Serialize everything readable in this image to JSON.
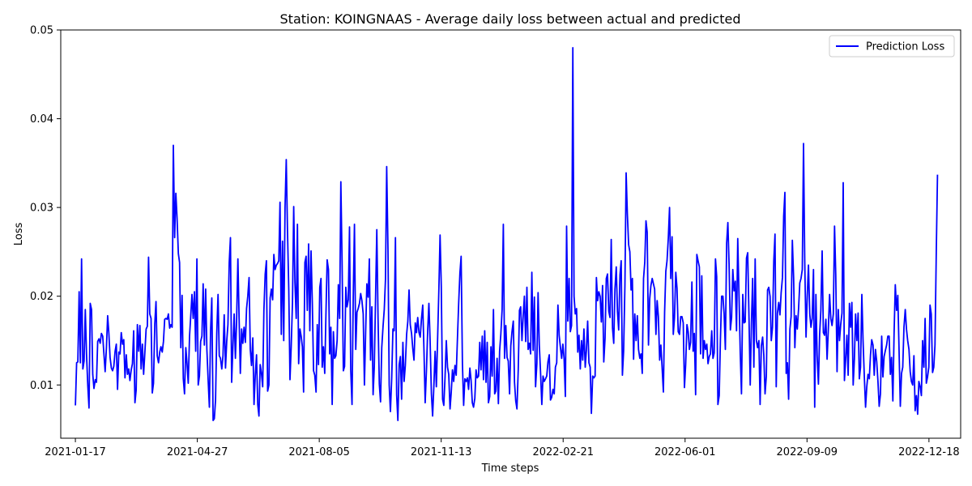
{
  "chart_data": {
    "type": "line",
    "title": "Station: KOINGNAAS - Average daily loss between actual and predicted",
    "xlabel": "Time steps",
    "ylabel": "Loss",
    "x_start": "2021-01-17",
    "x_end": "2022-12-25",
    "ylim": [
      0.004,
      0.05
    ],
    "xlim": [
      "2021-01-05",
      "2023-01-13"
    ],
    "x_ticks": [
      "2021-01-17",
      "2021-04-27",
      "2021-08-05",
      "2021-11-13",
      "2022-02-21",
      "2022-06-01",
      "2022-09-09",
      "2022-12-18"
    ],
    "y_ticks": [
      "0.01",
      "0.02",
      "0.03",
      "0.04",
      "0.05"
    ],
    "grid": false,
    "legend_position": "top-right",
    "line_color": "#0000ff",
    "series": [
      {
        "name": "Prediction Loss",
        "y": [
          0.0077,
          0.0125,
          0.0126,
          0.0205,
          0.0125,
          0.0242,
          0.0118,
          0.0127,
          0.0185,
          0.0135,
          0.0099,
          0.0074,
          0.0192,
          0.0185,
          0.0112,
          0.0096,
          0.0106,
          0.0103,
          0.0149,
          0.0152,
          0.0147,
          0.0158,
          0.0155,
          0.0135,
          0.0115,
          0.0142,
          0.0178,
          0.0158,
          0.0131,
          0.0119,
          0.0116,
          0.0121,
          0.0138,
          0.0146,
          0.0095,
          0.0137,
          0.0135,
          0.0159,
          0.0146,
          0.0151,
          0.0108,
          0.0134,
          0.0112,
          0.0118,
          0.0105,
          0.0117,
          0.0124,
          0.0161,
          0.008,
          0.0094,
          0.0168,
          0.0138,
          0.0167,
          0.0118,
          0.0146,
          0.0112,
          0.0136,
          0.0163,
          0.0166,
          0.0244,
          0.018,
          0.0175,
          0.0091,
          0.0102,
          0.0169,
          0.0194,
          0.0133,
          0.0125,
          0.0137,
          0.0143,
          0.0137,
          0.0149,
          0.0174,
          0.0175,
          0.0174,
          0.018,
          0.0164,
          0.0168,
          0.0165,
          0.037,
          0.0266,
          0.0316,
          0.0288,
          0.0248,
          0.0238,
          0.0142,
          0.0201,
          0.0107,
          0.009,
          0.0142,
          0.0124,
          0.0102,
          0.0155,
          0.0178,
          0.0202,
          0.0175,
          0.0205,
          0.0138,
          0.0242,
          0.01,
          0.011,
          0.0149,
          0.0155,
          0.0214,
          0.0145,
          0.0208,
          0.014,
          0.0107,
          0.0075,
          0.0162,
          0.0198,
          0.006,
          0.0062,
          0.0083,
          0.0158,
          0.0202,
          0.0133,
          0.013,
          0.0118,
          0.0133,
          0.0179,
          0.0119,
          0.0149,
          0.0168,
          0.0238,
          0.0266,
          0.0103,
          0.0145,
          0.018,
          0.013,
          0.0172,
          0.0242,
          0.0175,
          0.0113,
          0.0163,
          0.0147,
          0.0165,
          0.0148,
          0.0186,
          0.02,
          0.0221,
          0.014,
          0.0122,
          0.0153,
          0.0078,
          0.011,
          0.0134,
          0.0078,
          0.0065,
          0.0123,
          0.0113,
          0.0098,
          0.0184,
          0.0225,
          0.024,
          0.0093,
          0.01,
          0.0198,
          0.0208,
          0.0196,
          0.0247,
          0.023,
          0.0235,
          0.0237,
          0.024,
          0.0306,
          0.0157,
          0.0262,
          0.015,
          0.03,
          0.0354,
          0.0275,
          0.0208,
          0.0106,
          0.0143,
          0.0193,
          0.0301,
          0.0216,
          0.0175,
          0.0281,
          0.0124,
          0.0163,
          0.0155,
          0.0143,
          0.0092,
          0.0238,
          0.0245,
          0.0184,
          0.0259,
          0.0161,
          0.0251,
          0.0192,
          0.0116,
          0.0111,
          0.0092,
          0.0168,
          0.0123,
          0.021,
          0.022,
          0.012,
          0.0143,
          0.0113,
          0.018,
          0.0241,
          0.023,
          0.0135,
          0.0165,
          0.0078,
          0.016,
          0.013,
          0.0133,
          0.015,
          0.0213,
          0.0175,
          0.0329,
          0.024,
          0.0116,
          0.0121,
          0.021,
          0.0188,
          0.0196,
          0.0278,
          0.0117,
          0.0078,
          0.0199,
          0.0281,
          0.014,
          0.0182,
          0.0186,
          0.0192,
          0.0203,
          0.0195,
          0.018,
          0.01,
          0.0159,
          0.0214,
          0.0199,
          0.0242,
          0.0128,
          0.0188,
          0.0089,
          0.0121,
          0.02,
          0.0275,
          0.0176,
          0.0101,
          0.0081,
          0.0142,
          0.0166,
          0.0185,
          0.0219,
          0.0346,
          0.0252,
          0.01,
          0.007,
          0.0108,
          0.0163,
          0.0161,
          0.0266,
          0.0089,
          0.006,
          0.0123,
          0.0132,
          0.0084,
          0.0148,
          0.0104,
          0.0122,
          0.0157,
          0.0172,
          0.0207,
          0.0168,
          0.0158,
          0.0141,
          0.0128,
          0.017,
          0.0159,
          0.0176,
          0.0159,
          0.0154,
          0.0174,
          0.019,
          0.014,
          0.008,
          0.0117,
          0.0161,
          0.0192,
          0.015,
          0.009,
          0.0065,
          0.0098,
          0.0138,
          0.0098,
          0.015,
          0.0207,
          0.0269,
          0.0211,
          0.0084,
          0.0077,
          0.0108,
          0.015,
          0.012,
          0.0112,
          0.0073,
          0.0092,
          0.0117,
          0.0104,
          0.0122,
          0.0111,
          0.0151,
          0.0193,
          0.0226,
          0.0245,
          0.0124,
          0.0077,
          0.0107,
          0.0104,
          0.0108,
          0.0095,
          0.0119,
          0.0105,
          0.008,
          0.0075,
          0.0085,
          0.0117,
          0.0108,
          0.011,
          0.0148,
          0.0117,
          0.0155,
          0.0106,
          0.0161,
          0.0103,
          0.0148,
          0.008,
          0.0087,
          0.0143,
          0.011,
          0.0185,
          0.009,
          0.0093,
          0.013,
          0.0079,
          0.0138,
          0.0157,
          0.0185,
          0.0281,
          0.013,
          0.0167,
          0.0131,
          0.0127,
          0.009,
          0.0144,
          0.016,
          0.0172,
          0.0103,
          0.0082,
          0.0073,
          0.0117,
          0.0184,
          0.0188,
          0.015,
          0.0178,
          0.02,
          0.0149,
          0.021,
          0.014,
          0.0147,
          0.0135,
          0.0227,
          0.0139,
          0.0199,
          0.0098,
          0.0124,
          0.0204,
          0.0145,
          0.0115,
          0.0078,
          0.011,
          0.0104,
          0.0107,
          0.011,
          0.0126,
          0.0134,
          0.0083,
          0.0086,
          0.0095,
          0.009,
          0.012,
          0.0125,
          0.019,
          0.0156,
          0.0143,
          0.013,
          0.0146,
          0.013,
          0.0087,
          0.0279,
          0.0172,
          0.022,
          0.016,
          0.0167,
          0.048,
          0.02,
          0.018,
          0.0186,
          0.0137,
          0.0156,
          0.0118,
          0.015,
          0.0128,
          0.0163,
          0.012,
          0.014,
          0.0172,
          0.0125,
          0.012,
          0.0068,
          0.011,
          0.0108,
          0.011,
          0.0221,
          0.0195,
          0.0205,
          0.02,
          0.0171,
          0.0212,
          0.0126,
          0.0153,
          0.022,
          0.0225,
          0.0183,
          0.0176,
          0.0264,
          0.0164,
          0.0147,
          0.0208,
          0.0233,
          0.0183,
          0.0162,
          0.0224,
          0.024,
          0.0111,
          0.0138,
          0.0212,
          0.0339,
          0.0293,
          0.0258,
          0.025,
          0.0207,
          0.022,
          0.0129,
          0.018,
          0.015,
          0.0178,
          0.014,
          0.013,
          0.0135,
          0.0113,
          0.022,
          0.0238,
          0.0285,
          0.0272,
          0.0145,
          0.0197,
          0.0212,
          0.022,
          0.0214,
          0.0208,
          0.0157,
          0.0195,
          0.0177,
          0.0128,
          0.0145,
          0.012,
          0.0092,
          0.0182,
          0.0228,
          0.024,
          0.0266,
          0.03,
          0.022,
          0.0267,
          0.0157,
          0.0176,
          0.0227,
          0.0209,
          0.016,
          0.0157,
          0.0177,
          0.0177,
          0.017,
          0.0097,
          0.0123,
          0.0168,
          0.016,
          0.014,
          0.0148,
          0.0216,
          0.0138,
          0.0158,
          0.0089,
          0.0247,
          0.024,
          0.0233,
          0.0135,
          0.0223,
          0.013,
          0.015,
          0.014,
          0.0146,
          0.0124,
          0.0132,
          0.0135,
          0.0161,
          0.013,
          0.0136,
          0.0242,
          0.0222,
          0.0078,
          0.0088,
          0.0151,
          0.02,
          0.02,
          0.018,
          0.014,
          0.026,
          0.0283,
          0.0236,
          0.0162,
          0.0176,
          0.023,
          0.0206,
          0.0217,
          0.0161,
          0.0265,
          0.0199,
          0.0136,
          0.009,
          0.0202,
          0.017,
          0.0171,
          0.0243,
          0.0249,
          0.018,
          0.01,
          0.017,
          0.022,
          0.012,
          0.0242,
          0.015,
          0.0142,
          0.015,
          0.0078,
          0.0144,
          0.0154,
          0.0133,
          0.009,
          0.011,
          0.0207,
          0.021,
          0.02,
          0.015,
          0.0165,
          0.024,
          0.027,
          0.0098,
          0.0181,
          0.0193,
          0.0179,
          0.0204,
          0.0221,
          0.029,
          0.0317,
          0.0113,
          0.0125,
          0.0084,
          0.0163,
          0.0177,
          0.0263,
          0.022,
          0.0142,
          0.0178,
          0.0163,
          0.0186,
          0.0215,
          0.022,
          0.023,
          0.0372,
          0.024,
          0.0154,
          0.02,
          0.0235,
          0.018,
          0.0165,
          0.0175,
          0.023,
          0.0075,
          0.0202,
          0.0133,
          0.0101,
          0.0157,
          0.0184,
          0.0251,
          0.0159,
          0.0156,
          0.0174,
          0.0129,
          0.0162,
          0.0202,
          0.0175,
          0.0167,
          0.018,
          0.0279,
          0.0224,
          0.0115,
          0.0185,
          0.015,
          0.0168,
          0.0181,
          0.0328,
          0.0105,
          0.013,
          0.0156,
          0.0111,
          0.0192,
          0.0165,
          0.0193,
          0.01,
          0.0129,
          0.018,
          0.015,
          0.0181,
          0.0107,
          0.012,
          0.0202,
          0.015,
          0.0111,
          0.0075,
          0.0098,
          0.0112,
          0.0107,
          0.0134,
          0.0151,
          0.0145,
          0.0111,
          0.014,
          0.0126,
          0.0104,
          0.0076,
          0.009,
          0.0155,
          0.0109,
          0.0132,
          0.0139,
          0.0145,
          0.0155,
          0.0155,
          0.0112,
          0.0131,
          0.0082,
          0.0158,
          0.0213,
          0.0184,
          0.0201,
          0.0141,
          0.0076,
          0.0113,
          0.012,
          0.0165,
          0.0185,
          0.0163,
          0.015,
          0.014,
          0.0115,
          0.0104,
          0.01,
          0.0133,
          0.0071,
          0.0088,
          0.0067,
          0.0104,
          0.0098,
          0.0088,
          0.015,
          0.012,
          0.0175,
          0.0102,
          0.0109,
          0.012,
          0.019,
          0.018,
          0.0114,
          0.012,
          0.0145,
          0.025,
          0.0337
        ]
      }
    ]
  }
}
